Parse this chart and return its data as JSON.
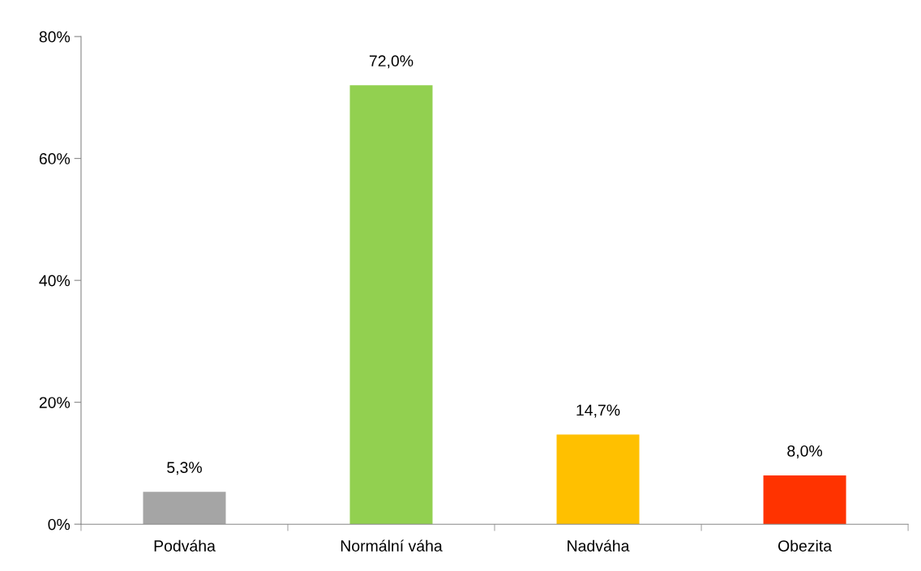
{
  "chart_data": {
    "type": "bar",
    "categories": [
      "Podváha",
      "Normální váha",
      "Nadváha",
      "Obezita"
    ],
    "values": [
      5.3,
      72.0,
      14.7,
      8.0
    ],
    "colors": [
      "#a5a5a5",
      "#92d050",
      "#ffc000",
      "#ff3300"
    ],
    "value_labels": [
      "5,3%",
      "72,0%",
      "14,7%",
      "8,0%"
    ],
    "ylim": [
      0,
      80
    ],
    "yticks": [
      {
        "value": 0,
        "label": "0%"
      },
      {
        "value": 20,
        "label": "20%"
      },
      {
        "value": 40,
        "label": "40%"
      },
      {
        "value": 60,
        "label": "60%"
      },
      {
        "value": 80,
        "label": "80%"
      }
    ],
    "grid": false,
    "legend": false
  }
}
